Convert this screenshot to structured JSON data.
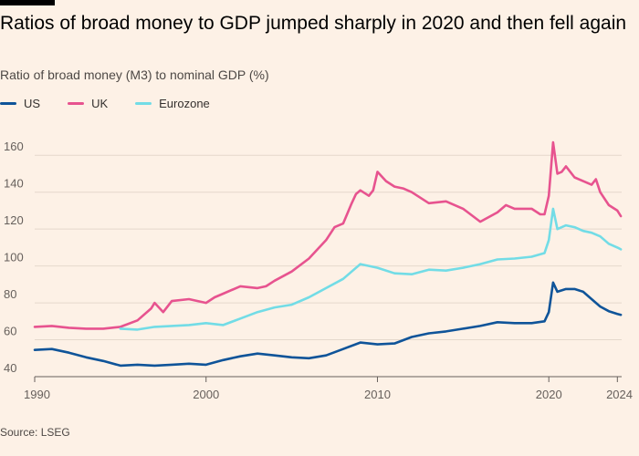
{
  "header": {
    "title": "Ratios of broad money to GDP jumped sharply in 2020 and then fell again",
    "subtitle": "Ratio of broad money (M3) to nominal GDP (%)"
  },
  "footer": {
    "source": "Source: LSEG"
  },
  "colors": {
    "US": "#0f5499",
    "UK": "#e7538f",
    "Eurozone": "#72dce6",
    "grid": "#e5d8cc",
    "axis": "#66605c",
    "text": "#66605c"
  },
  "chart_data": {
    "type": "line",
    "title": "Ratios of broad money to GDP jumped sharply in 2020 and then fell again",
    "subtitle": "Ratio of broad money (M3) to nominal GDP (%)",
    "xlabel": "",
    "ylabel": "",
    "xlim": [
      1990,
      2024.25
    ],
    "ylim": [
      40,
      170
    ],
    "yticks": [
      40,
      60,
      80,
      100,
      120,
      140,
      160
    ],
    "xticks": [
      1990,
      2000,
      2010,
      2020,
      2024
    ],
    "xtick_labels": [
      "1990",
      "2000",
      "2010",
      "2020",
      "2024"
    ],
    "grid": true,
    "legend": "top-left",
    "series": [
      {
        "name": "US",
        "x": [
          1990,
          1991,
          1992,
          1993,
          1994,
          1995,
          1996,
          1997,
          1998,
          1999,
          2000,
          2001,
          2002,
          2003,
          2004,
          2005,
          2006,
          2007,
          2008,
          2009,
          2010,
          2011,
          2012,
          2013,
          2014,
          2015,
          2016,
          2017,
          2018,
          2019,
          2019.75,
          2020.0,
          2020.25,
          2020.5,
          2021,
          2021.5,
          2022,
          2022.5,
          2023,
          2023.5,
          2024,
          2024.2
        ],
        "y": [
          54.5,
          55,
          53,
          50.5,
          48.5,
          46,
          46.5,
          46,
          46.5,
          47,
          46.5,
          49,
          51,
          52.5,
          51.5,
          50.5,
          50,
          51.5,
          55,
          58.5,
          57.5,
          58,
          61.5,
          63.5,
          64.5,
          66,
          67.5,
          69.5,
          69,
          69,
          70,
          75,
          91,
          86,
          87.5,
          87.5,
          86,
          82,
          78,
          75.5,
          74,
          73.5
        ]
      },
      {
        "name": "UK",
        "x": [
          1990,
          1991,
          1992,
          1993,
          1994,
          1995,
          1996,
          1996.8,
          1997,
          1997.5,
          1998,
          1999,
          2000,
          2000.5,
          2001,
          2002,
          2003,
          2003.5,
          2004,
          2005,
          2006,
          2007,
          2007.5,
          2008,
          2008.5,
          2008.75,
          2009,
          2009.5,
          2009.75,
          2010,
          2010.5,
          2011,
          2011.5,
          2012,
          2013,
          2014,
          2015,
          2016,
          2017,
          2017.5,
          2018,
          2019,
          2019.5,
          2019.75,
          2020,
          2020.25,
          2020.5,
          2020.75,
          2021,
          2021.5,
          2022,
          2022.5,
          2022.75,
          2023,
          2023.5,
          2024,
          2024.2
        ],
        "y": [
          67,
          67.5,
          66.5,
          66,
          66,
          67,
          70.5,
          77,
          80,
          75,
          81,
          82,
          80,
          83,
          85,
          89,
          88,
          89,
          92,
          97,
          104,
          114,
          121,
          123,
          134,
          139,
          141,
          138,
          141,
          151,
          146,
          143,
          142,
          140,
          134,
          135,
          131,
          124,
          129,
          133,
          131,
          131,
          128,
          128,
          138,
          167,
          150,
          151,
          154,
          148,
          146,
          144,
          147,
          140,
          133,
          130,
          127
        ]
      },
      {
        "name": "Eurozone",
        "x": [
          1995,
          1996,
          1997,
          1998,
          1999,
          2000,
          2001,
          2002,
          2003,
          2004,
          2005,
          2006,
          2007,
          2008,
          2008.5,
          2009,
          2010,
          2011,
          2012,
          2013,
          2014,
          2015,
          2016,
          2017,
          2018,
          2019,
          2019.75,
          2020,
          2020.25,
          2020.5,
          2021,
          2021.5,
          2022,
          2022.5,
          2023,
          2023.5,
          2024,
          2024.2
        ],
        "y": [
          66,
          65.5,
          67,
          67.5,
          68,
          69,
          68,
          71.5,
          75,
          77.5,
          79,
          83,
          88,
          93,
          97,
          101,
          99,
          96,
          95.5,
          98,
          97.5,
          99,
          101,
          103.5,
          104,
          105,
          107,
          114,
          131,
          120,
          122,
          121,
          119,
          118,
          116,
          112,
          110,
          109
        ]
      }
    ]
  }
}
